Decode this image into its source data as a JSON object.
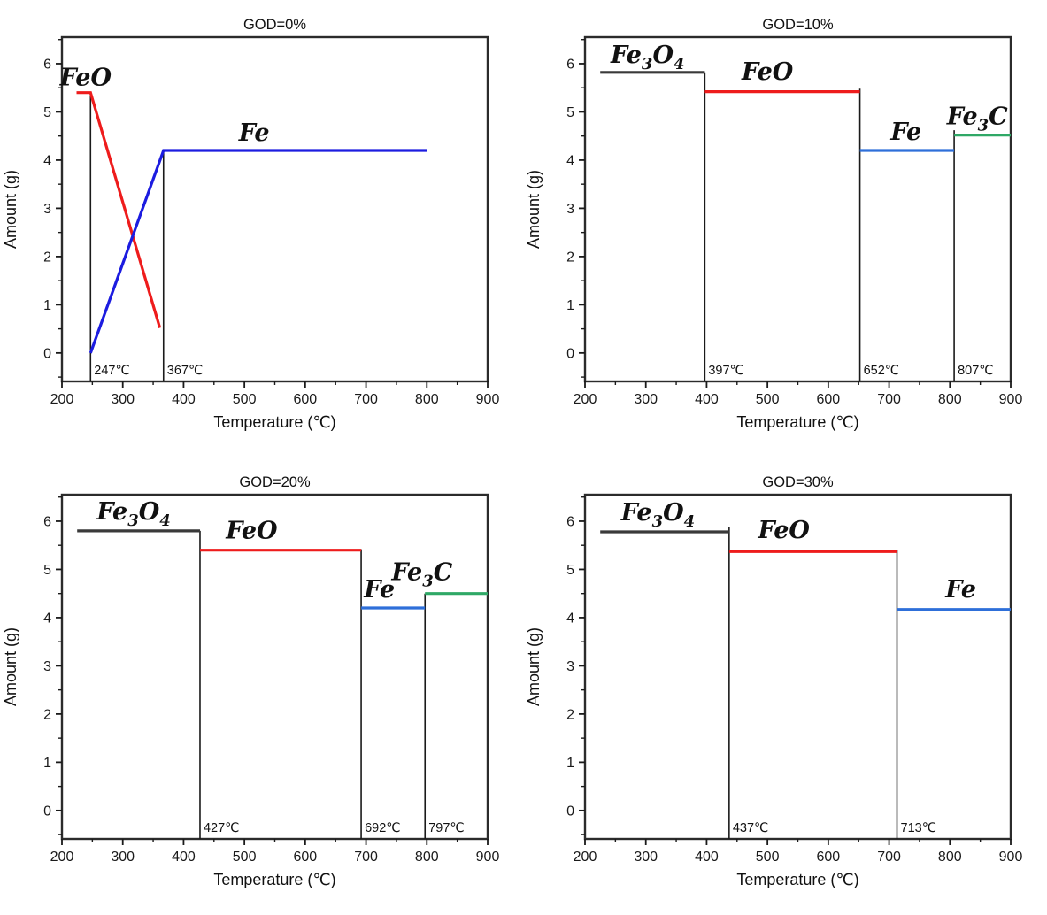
{
  "figure": {
    "background": "#ffffff",
    "frame_color": "#2b2b2b",
    "tick_color": "#1a1a1a",
    "marker_line_color": "#1a1a1a"
  },
  "chart_data": [
    {
      "type": "line",
      "title": "GOD=0%",
      "xlabel": "Temperature (℃)",
      "ylabel": "Amount (g)",
      "xlim": [
        200,
        900
      ],
      "ylim": [
        -0.59,
        6.55
      ],
      "xticks": [
        200,
        300,
        400,
        500,
        600,
        700,
        800,
        900
      ],
      "yticks": [
        0,
        1,
        2,
        3,
        4,
        5,
        6
      ],
      "grid": false,
      "legend": "inline-labels",
      "series": [
        {
          "name": "FeO",
          "label": [
            "FeO"
          ],
          "color": "#ee1c1c",
          "label_color": "#ee1c1c",
          "label_x": 239,
          "label_y": 5.55,
          "points": [
            [
              224,
              5.4
            ],
            [
              247,
              5.4
            ],
            [
              361,
              0.52
            ]
          ]
        },
        {
          "name": "Fe",
          "label": [
            "Fe"
          ],
          "color": "#1c1ce0",
          "label_color": "#1f78c8",
          "label_x": 516,
          "label_y": 4.4,
          "points": [
            [
              247,
              0.0
            ],
            [
              367,
              4.2
            ],
            [
              800,
              4.2
            ]
          ]
        }
      ],
      "markers": [
        {
          "temp": 247,
          "top": 5.4,
          "label": "247℃"
        },
        {
          "temp": 367,
          "top": 4.2,
          "label": "367℃"
        }
      ]
    },
    {
      "type": "line",
      "title": "GOD=10%",
      "xlabel": "Temperature (℃)",
      "ylabel": "Amount (g)",
      "xlim": [
        200,
        900
      ],
      "ylim": [
        -0.59,
        6.55
      ],
      "xticks": [
        200,
        300,
        400,
        500,
        600,
        700,
        800,
        900
      ],
      "yticks": [
        0,
        1,
        2,
        3,
        4,
        5,
        6
      ],
      "grid": false,
      "legend": "inline-labels",
      "series": [
        {
          "name": "Fe3O4",
          "label": [
            "Fe",
            {
              "sub": "3"
            },
            "O",
            {
              "sub": "4"
            }
          ],
          "color": "#3a3a3a",
          "label_color": "#222222",
          "label_x": 303,
          "label_y": 6.02,
          "points": [
            [
              225,
              5.82
            ],
            [
              397,
              5.82
            ]
          ]
        },
        {
          "name": "FeO",
          "label": [
            "FeO"
          ],
          "color": "#ee1c1c",
          "label_color": "#ee1c1c",
          "label_x": 500,
          "label_y": 5.67,
          "points": [
            [
              397,
              5.42
            ],
            [
              652,
              5.42
            ]
          ]
        },
        {
          "name": "Fe",
          "label": [
            "Fe"
          ],
          "color": "#2e6fd9",
          "label_color": "#1f78c8",
          "label_x": 728,
          "label_y": 4.42,
          "points": [
            [
              652,
              4.2
            ],
            [
              807,
              4.2
            ]
          ]
        },
        {
          "name": "Fe3C",
          "label": [
            "Fe",
            {
              "sub": "3"
            },
            "C"
          ],
          "color": "#2fa866",
          "label_color": "#2fa866",
          "label_x": 845,
          "label_y": 4.74,
          "points": [
            [
              807,
              4.52
            ],
            [
              900,
              4.52
            ]
          ]
        }
      ],
      "markers": [
        {
          "temp": 397,
          "top": 5.82,
          "label": "397℃"
        },
        {
          "temp": 652,
          "top": 5.48,
          "label": "652℃"
        },
        {
          "temp": 807,
          "top": 4.62,
          "label": "807℃"
        }
      ]
    },
    {
      "type": "line",
      "title": "GOD=20%",
      "xlabel": "Temperature (℃)",
      "ylabel": "Amount (g)",
      "xlim": [
        200,
        900
      ],
      "ylim": [
        -0.59,
        6.55
      ],
      "xticks": [
        200,
        300,
        400,
        500,
        600,
        700,
        800,
        900
      ],
      "yticks": [
        0,
        1,
        2,
        3,
        4,
        5,
        6
      ],
      "grid": false,
      "legend": "inline-labels",
      "series": [
        {
          "name": "Fe3O4",
          "label": [
            "Fe",
            {
              "sub": "3"
            },
            "O",
            {
              "sub": "4"
            }
          ],
          "color": "#3a3a3a",
          "label_color": "#222222",
          "label_x": 318,
          "label_y": 6.04,
          "points": [
            [
              225,
              5.8
            ],
            [
              427,
              5.8
            ]
          ]
        },
        {
          "name": "FeO",
          "label": [
            "FeO"
          ],
          "color": "#ee1c1c",
          "label_color": "#ee1c1c",
          "label_x": 512,
          "label_y": 5.64,
          "points": [
            [
              427,
              5.4
            ],
            [
              692,
              5.4
            ]
          ]
        },
        {
          "name": "Fe",
          "label": [
            "Fe"
          ],
          "color": "#2e6fd9",
          "label_color": "#1f78c8",
          "label_x": 722,
          "label_y": 4.42,
          "points": [
            [
              692,
              4.2
            ],
            [
              797,
              4.2
            ]
          ]
        },
        {
          "name": "Fe3C",
          "label": [
            "Fe",
            {
              "sub": "3"
            },
            "C"
          ],
          "color": "#2fa866",
          "label_color": "#2fa866",
          "label_x": 792,
          "label_y": 4.78,
          "points": [
            [
              797,
              4.5
            ],
            [
              900,
              4.5
            ]
          ]
        }
      ],
      "markers": [
        {
          "temp": 427,
          "top": 5.8,
          "label": "427℃"
        },
        {
          "temp": 692,
          "top": 5.42,
          "label": "692℃"
        },
        {
          "temp": 797,
          "top": 4.5,
          "label": "797℃"
        }
      ]
    },
    {
      "type": "line",
      "title": "GOD=30%",
      "xlabel": "Temperature (℃)",
      "ylabel": "Amount (g)",
      "xlim": [
        200,
        900
      ],
      "ylim": [
        -0.59,
        6.55
      ],
      "xticks": [
        200,
        300,
        400,
        500,
        600,
        700,
        800,
        900
      ],
      "yticks": [
        0,
        1,
        2,
        3,
        4,
        5,
        6
      ],
      "grid": false,
      "legend": "inline-labels",
      "series": [
        {
          "name": "Fe3O4",
          "label": [
            "Fe",
            {
              "sub": "3"
            },
            "O",
            {
              "sub": "4"
            }
          ],
          "color": "#3a3a3a",
          "label_color": "#222222",
          "label_x": 320,
          "label_y": 6.02,
          "points": [
            [
              225,
              5.78
            ],
            [
              437,
              5.78
            ]
          ]
        },
        {
          "name": "FeO",
          "label": [
            "FeO"
          ],
          "color": "#ee1c1c",
          "label_color": "#ee1c1c",
          "label_x": 527,
          "label_y": 5.65,
          "points": [
            [
              437,
              5.37
            ],
            [
              713,
              5.37
            ]
          ]
        },
        {
          "name": "Fe",
          "label": [
            "Fe"
          ],
          "color": "#2e6fd9",
          "label_color": "#1f78c8",
          "label_x": 818,
          "label_y": 4.42,
          "points": [
            [
              713,
              4.17
            ],
            [
              900,
              4.17
            ]
          ]
        }
      ],
      "markers": [
        {
          "temp": 437,
          "top": 5.88,
          "label": "437℃"
        },
        {
          "temp": 713,
          "top": 5.4,
          "label": "713℃"
        }
      ]
    }
  ]
}
